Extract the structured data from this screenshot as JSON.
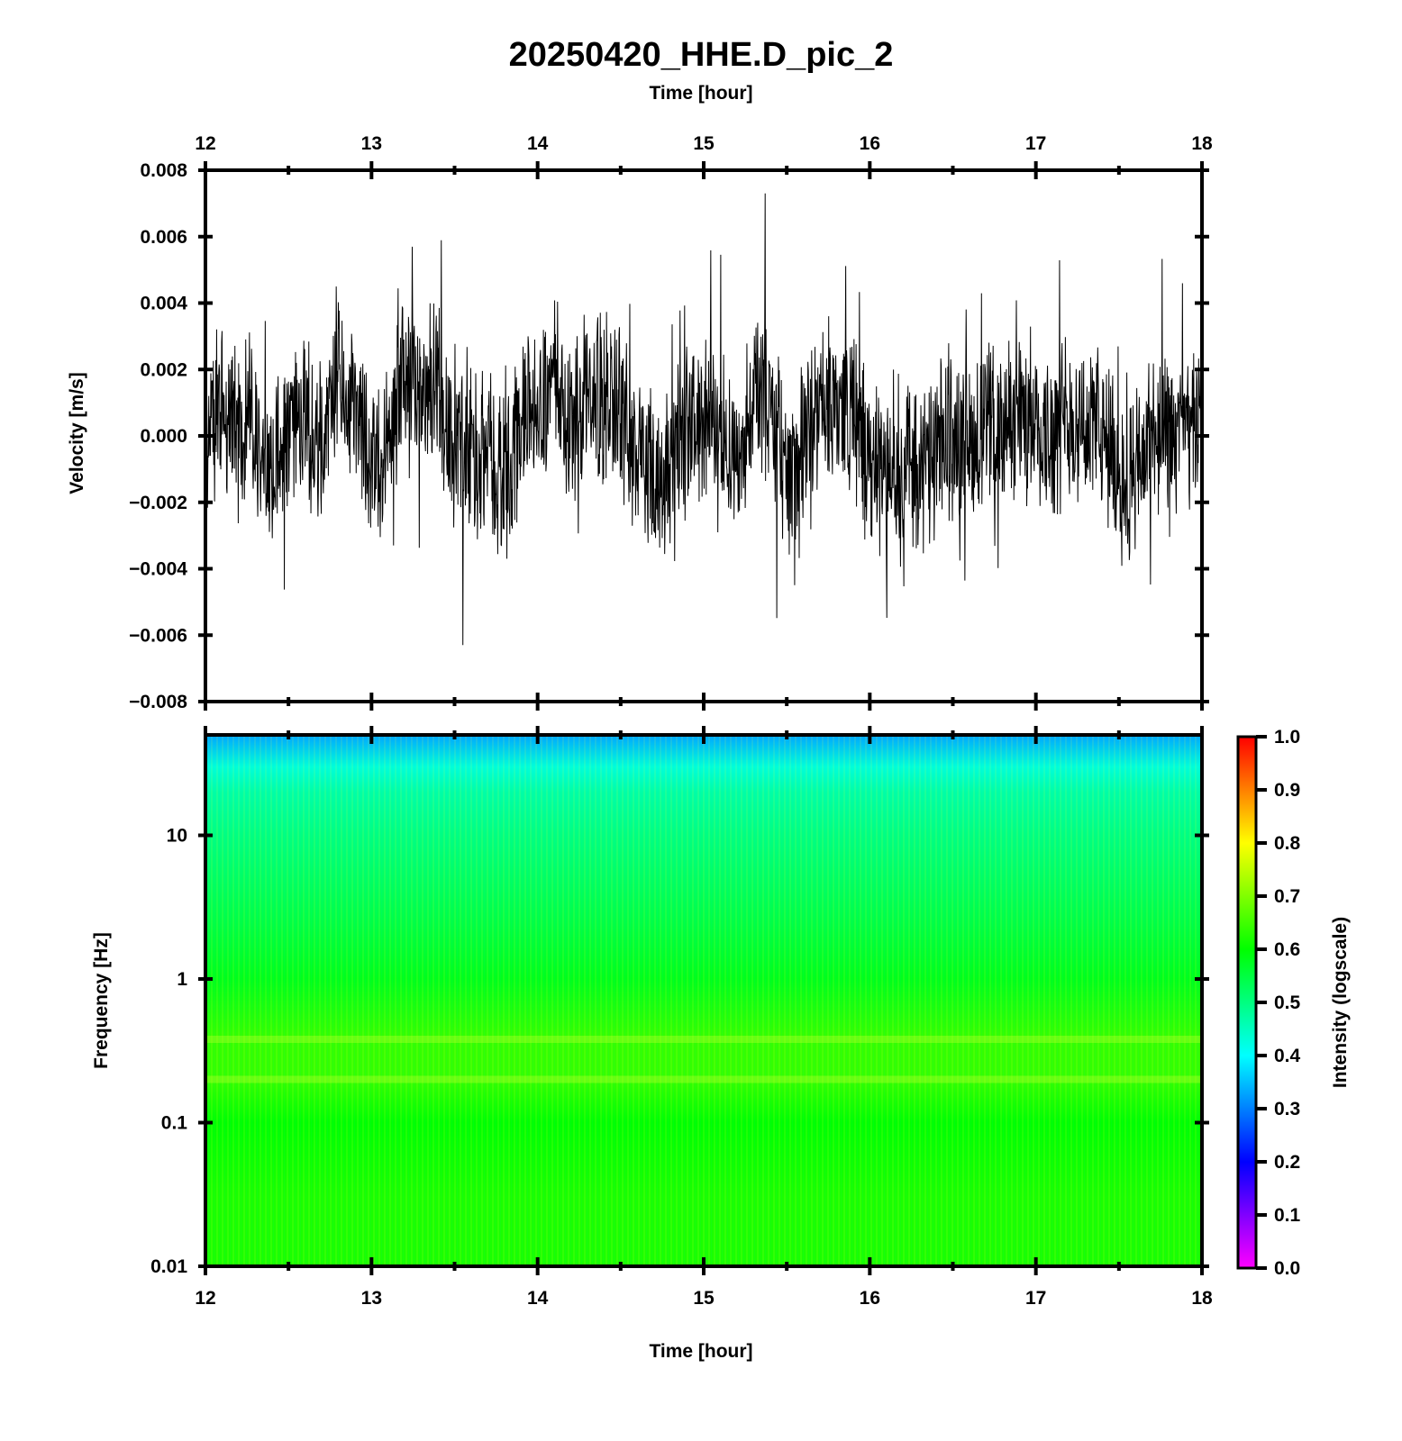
{
  "title": "20250420_HHE.D_pic_2",
  "chart_data": [
    {
      "type": "line",
      "panel": "waveform",
      "xlabel": "Time [hour]",
      "ylabel": "Velocity [m/s]",
      "xlim": [
        12,
        18
      ],
      "ylim": [
        -0.008,
        0.008
      ],
      "x_ticks": [
        "12",
        "13",
        "14",
        "15",
        "16",
        "17",
        "18"
      ],
      "x_tick_values": [
        12,
        13,
        14,
        15,
        16,
        17,
        18
      ],
      "y_ticks": [
        "0.008",
        "0.006",
        "0.004",
        "0.002",
        "0.000",
        "−0.002",
        "−0.004",
        "−0.006",
        "−0.008"
      ],
      "y_tick_values": [
        0.008,
        0.006,
        0.004,
        0.002,
        0.0,
        -0.002,
        -0.004,
        -0.006,
        -0.008
      ],
      "line_color": "#000000",
      "series": [
        {
          "x": [
            12.0,
            12.1,
            12.2,
            12.3,
            12.4,
            12.5,
            12.6,
            12.7,
            12.8,
            12.9,
            13.0,
            13.1,
            13.2,
            13.3,
            13.4,
            13.5,
            13.6,
            13.7,
            13.8,
            13.9,
            14.0,
            14.1,
            14.2,
            14.3,
            14.4,
            14.5,
            14.6,
            14.7,
            14.8,
            14.9,
            15.0,
            15.1,
            15.2,
            15.3,
            15.4,
            15.5,
            15.6,
            15.7,
            15.8,
            15.9,
            16.0,
            16.1,
            16.2,
            16.3,
            16.4,
            16.5,
            16.6,
            16.7,
            16.8,
            16.9,
            17.0,
            17.1,
            17.2,
            17.3,
            17.4,
            17.5,
            17.6,
            17.7,
            17.8,
            17.9,
            18.0
          ],
          "y": [
            0.0005,
            0.001,
            0.0002,
            0.0004,
            -0.001,
            0.0002,
            0.0003,
            -0.0003,
            0.0015,
            0.0008,
            -0.0008,
            -0.0006,
            0.0022,
            0.0012,
            0.0018,
            -0.0002,
            -0.0006,
            -0.0003,
            -0.0012,
            0.0004,
            0.0012,
            0.0015,
            0.0003,
            0.0009,
            0.0012,
            0.0008,
            -0.0007,
            -0.0014,
            -0.0006,
            0.0002,
            0.0004,
            0.0006,
            -0.0008,
            0.0012,
            0.0008,
            -0.0012,
            -0.0006,
            0.0008,
            0.001,
            0.0007,
            -0.0008,
            -0.0012,
            -0.0004,
            -0.0012,
            -0.0006,
            0.0002,
            -0.0004,
            0.0003,
            0.0002,
            0.0006,
            0.0004,
            0.0001,
            0.0006,
            0.0004,
            -0.0001,
            -0.0012,
            -0.0014,
            0.0002,
            -0.0004,
            0.0004,
            0.0002
          ],
          "peak_max": 0.0073,
          "peak_min": -0.0063
        }
      ]
    },
    {
      "type": "heatmap",
      "panel": "spectrogram",
      "xlabel": "Time [hour]",
      "ylabel": "Frequency [Hz]",
      "xlim": [
        12,
        18
      ],
      "ylim": [
        0.01,
        50
      ],
      "y_scale": "log",
      "x_ticks": [
        "12",
        "13",
        "14",
        "15",
        "16",
        "17",
        "18"
      ],
      "x_tick_values": [
        12,
        13,
        14,
        15,
        16,
        17,
        18
      ],
      "y_ticks": [
        "10",
        "1",
        "0.1",
        "0.01"
      ],
      "y_tick_values": [
        10,
        1,
        0.1,
        0.01
      ],
      "frequency_profile": {
        "frequency_hz": [
          50,
          30,
          20,
          10,
          3,
          1,
          0.4,
          0.2,
          0.1,
          0.03,
          0.01
        ],
        "intensity": [
          0.33,
          0.43,
          0.47,
          0.5,
          0.54,
          0.58,
          0.64,
          0.64,
          0.6,
          0.62,
          0.62
        ]
      },
      "colorbar": {
        "label": "Intensity (logscale)",
        "range": [
          0.0,
          1.0
        ],
        "ticks": [
          "1.0",
          "0.9",
          "0.8",
          "0.7",
          "0.6",
          "0.5",
          "0.4",
          "0.3",
          "0.2",
          "0.1",
          "0.0"
        ],
        "tick_values": [
          1.0,
          0.9,
          0.8,
          0.7,
          0.6,
          0.5,
          0.4,
          0.3,
          0.2,
          0.1,
          0.0
        ],
        "colormap": [
          "#ff00ff",
          "#8000ff",
          "#0000ff",
          "#0080ff",
          "#00ffff",
          "#00ff80",
          "#00ff00",
          "#80ff00",
          "#ffff00",
          "#ff8000",
          "#ff0000"
        ]
      }
    }
  ]
}
